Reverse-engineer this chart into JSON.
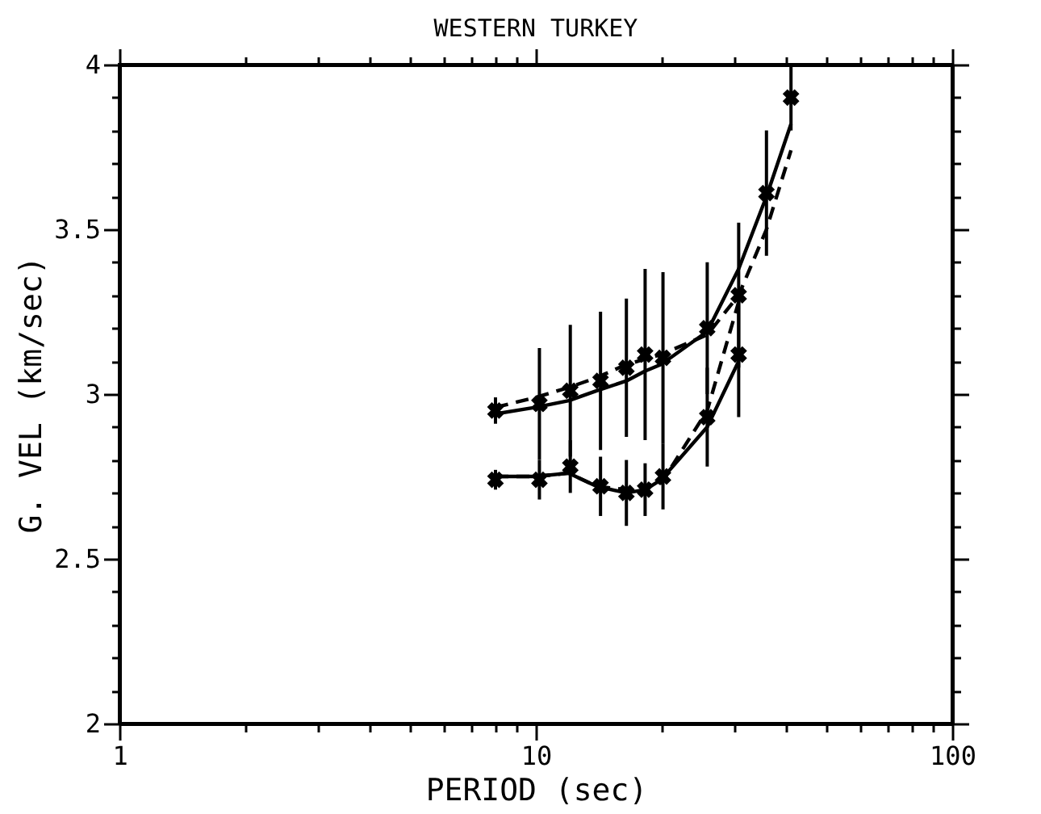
{
  "chart_data": {
    "type": "scatter",
    "title": "WESTERN TURKEY",
    "xlabel": "PERIOD (sec)",
    "ylabel": "G. VEL (km/sec)",
    "log": "x",
    "grid": false,
    "xlim": [
      1,
      100
    ],
    "xticks": [
      1,
      {
        "value": 2,
        "label": null
      },
      {
        "value": 3,
        "label": null
      },
      {
        "value": 4,
        "label": null
      },
      {
        "value": 5,
        "label": null
      },
      {
        "value": 6,
        "label": null
      },
      {
        "value": 7,
        "label": null
      },
      {
        "value": 8,
        "label": null
      },
      {
        "value": 9,
        "label": null
      },
      10,
      {
        "value": 20,
        "label": null
      },
      {
        "value": 30,
        "label": null
      },
      {
        "value": 40,
        "label": null
      },
      {
        "value": 50,
        "label": null
      },
      {
        "value": 60,
        "label": null
      },
      {
        "value": 70,
        "label": null
      },
      {
        "value": 80,
        "label": null
      },
      {
        "value": 90,
        "label": null
      },
      100
    ],
    "ylim": [
      2,
      4
    ],
    "yticks": [
      2,
      {
        "value": 2.1,
        "label": null
      },
      {
        "value": 2.2,
        "label": null
      },
      {
        "value": 2.3,
        "label": null
      },
      {
        "value": 2.4,
        "label": null
      },
      2.5,
      {
        "value": 2.6,
        "label": null
      },
      {
        "value": 2.7,
        "label": null
      },
      {
        "value": 2.8,
        "label": null
      },
      {
        "value": 2.9,
        "label": null
      },
      3,
      {
        "value": 3.1,
        "label": null
      },
      {
        "value": 3.2,
        "label": null
      },
      {
        "value": 3.3,
        "label": null
      },
      {
        "value": 3.4,
        "label": null
      },
      3.5,
      {
        "value": 3.6,
        "label": null
      },
      {
        "value": 3.7,
        "label": null
      },
      {
        "value": 3.8,
        "label": null
      },
      {
        "value": 3.9,
        "label": null
      },
      4
    ],
    "series": [
      {
        "marker": "cross",
        "color": "#000000",
        "x": [
          8,
          10.2,
          12.1,
          14.3,
          16.5,
          18.3,
          20.2,
          25.8,
          30.7,
          35.8,
          41
        ],
        "values": [
          2.95,
          2.97,
          3.01,
          3.04,
          3.08,
          3.12,
          3.11,
          3.2,
          3.3,
          3.61,
          3.9
        ],
        "errors": [
          0.04,
          0.17,
          0.2,
          0.21,
          0.21,
          0.26,
          0.26,
          0.2,
          0.22,
          0.19,
          0.1
        ]
      },
      {
        "marker": "cross",
        "color": "#000000",
        "x": [
          8,
          10.2,
          12.1,
          14.3,
          16.5,
          18.3,
          20.2,
          25.8,
          30.7
        ],
        "values": [
          2.74,
          2.74,
          2.78,
          2.72,
          2.7,
          2.71,
          2.75,
          2.93,
          3.12
        ],
        "errors": [
          0.03,
          0.06,
          0.08,
          0.09,
          0.1,
          0.08,
          0.1,
          0.15,
          0.19
        ]
      },
      {
        "type": "line",
        "line_style": "solid",
        "color": "#000000",
        "x": [
          8,
          10,
          12,
          14,
          16.5,
          18.3,
          20,
          25.8,
          30.7,
          35.8,
          41
        ],
        "values": [
          2.94,
          2.96,
          2.98,
          3.01,
          3.04,
          3.07,
          3.09,
          3.19,
          3.38,
          3.6,
          3.82
        ]
      },
      {
        "type": "line",
        "line_style": "dashed",
        "color": "#000000",
        "x": [
          8,
          10,
          12,
          14,
          16.5,
          20,
          25.8,
          30.7,
          35.8,
          41
        ],
        "values": [
          2.96,
          2.99,
          3.02,
          3.05,
          3.09,
          3.12,
          3.18,
          3.3,
          3.5,
          3.74
        ]
      },
      {
        "type": "line",
        "line_style": "solid",
        "color": "#000000",
        "x": [
          8,
          10,
          12,
          14,
          16.5,
          18.3,
          20,
          25.8,
          30.7
        ],
        "values": [
          2.75,
          2.75,
          2.76,
          2.72,
          2.7,
          2.71,
          2.74,
          2.9,
          3.1
        ]
      },
      {
        "type": "line",
        "line_style": "dashed",
        "color": "#000000",
        "x": [
          8,
          10,
          12,
          14,
          16.5,
          20,
          25.8,
          30.7
        ],
        "values": [
          2.75,
          2.75,
          2.76,
          2.72,
          2.71,
          2.73,
          2.95,
          3.28
        ]
      }
    ]
  }
}
